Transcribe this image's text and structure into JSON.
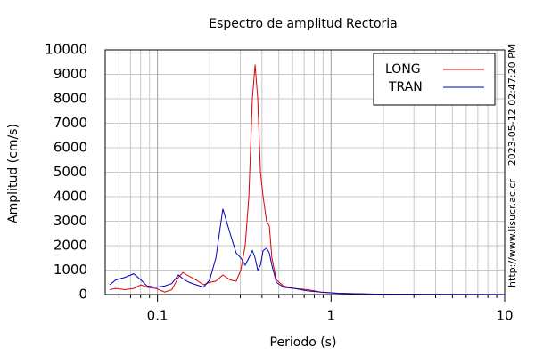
{
  "chart_data": {
    "type": "line",
    "title": "Espectro de amplitud Rectoria",
    "xlabel": "Periodo (s)",
    "ylabel": "Amplitud (cm/s)",
    "side_texts": [
      "2023-05-12 02:47:20 PM",
      "http://www.lisucr.ac.cr"
    ],
    "x": [
      0.0531,
      0.0576,
      0.0648,
      0.073,
      0.0802,
      0.0871,
      0.0981,
      0.11,
      0.121,
      0.132,
      0.14,
      0.152,
      0.167,
      0.184,
      0.2,
      0.217,
      0.238,
      0.262,
      0.284,
      0.302,
      0.32,
      0.336,
      0.352,
      0.365,
      0.378,
      0.392,
      0.406,
      0.425,
      0.441,
      0.456,
      0.484,
      0.532,
      0.614,
      0.733,
      0.875,
      1.11,
      1.78,
      4.58,
      10
    ],
    "series": [
      {
        "name": "LONG",
        "color": "#dd0000",
        "values": [
          200,
          250,
          200,
          250,
          400,
          300,
          250,
          100,
          200,
          700,
          900,
          750,
          600,
          400,
          500,
          550,
          800,
          600,
          550,
          1000,
          2000,
          4000,
          8000,
          9400,
          8000,
          5000,
          4000,
          3000,
          2800,
          1500,
          600,
          350,
          250,
          200,
          100,
          50,
          20,
          10,
          5
        ]
      },
      {
        "name": "TRAN",
        "color": "#0000bb",
        "values": [
          400,
          600,
          700,
          850,
          600,
          350,
          300,
          350,
          450,
          800,
          650,
          500,
          400,
          300,
          600,
          1500,
          3500,
          2500,
          1700,
          1500,
          1200,
          1500,
          1800,
          1500,
          1000,
          1200,
          1800,
          1900,
          1700,
          1200,
          500,
          300,
          250,
          150,
          100,
          50,
          20,
          10,
          5
        ]
      }
    ],
    "xscale": "log",
    "xlim": [
      0.05,
      10
    ],
    "xticks": [
      0.1,
      1,
      10
    ],
    "ylim": [
      0,
      10000
    ],
    "yticks": [
      0,
      1000,
      2000,
      3000,
      4000,
      5000,
      6000,
      7000,
      8000,
      9000,
      10000
    ],
    "grid": true,
    "minor_grid": true,
    "legend": "upper right"
  }
}
